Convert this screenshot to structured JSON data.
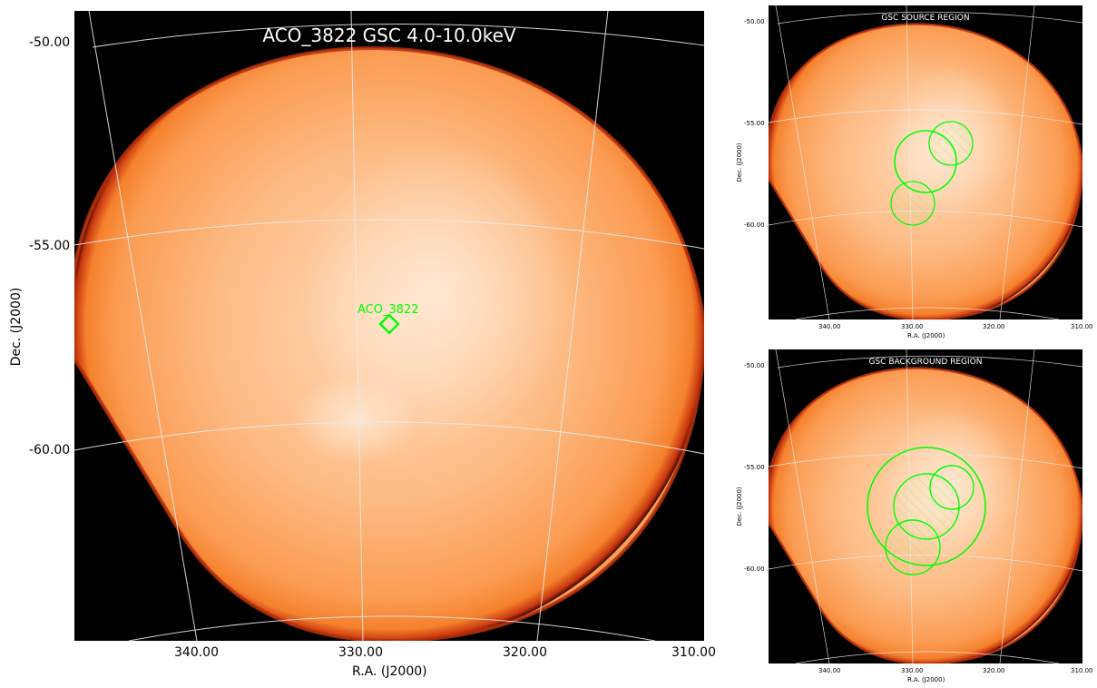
{
  "main": {
    "title": "ACO_3822 GSC 4.0-10.0keV",
    "source_label": "ACO_3822",
    "xlabel": "R.A. (J2000)",
    "ylabel": "Dec. (J2000)",
    "xticks": [
      "340.00",
      "330.00",
      "320.00",
      "310.00"
    ],
    "yticks": [
      "-50.00",
      "-55.00",
      "-60.00"
    ]
  },
  "source_panel": {
    "title": "GSC SOURCE REGION",
    "xlabel": "R.A. (J2000)",
    "ylabel": "Dec. (J2000)",
    "xticks": [
      "340.00",
      "330.00",
      "320.00",
      "310.00"
    ],
    "yticks": [
      "-50.00",
      "-55.00",
      "-60.00"
    ]
  },
  "background_panel": {
    "title": "GSC BACKGROUND REGION",
    "xlabel": "R.A. (J2000)",
    "ylabel": "Dec. (J2000)",
    "xticks": [
      "340.00",
      "330.00",
      "320.00",
      "310.00"
    ],
    "yticks": [
      "-50.00",
      "-55.00",
      "-60.00"
    ]
  },
  "colors": {
    "image_edge": "#000000",
    "image_rim": "#e0501a",
    "image_body": "#fba05a",
    "image_center": "#ffd2ac",
    "region": "#00ff00",
    "grid": "#e8e8e8",
    "title_text": "#ffffff"
  }
}
